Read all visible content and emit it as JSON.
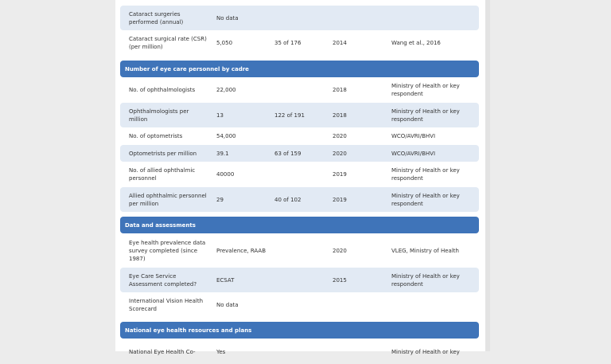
{
  "sections": [
    {
      "rows": [
        [
          "Cataract surgeries performed (annual)",
          "No data",
          "",
          "",
          ""
        ],
        [
          "Cataract surgical rate (CSR) (per million)",
          "5,050",
          "35 of 176",
          "2014",
          "Wang et al., 2016"
        ]
      ]
    },
    {
      "title": "Number of eye care personnel by cadre",
      "rows": [
        [
          "No. of ophthalmologists",
          "22,000",
          "",
          "2018",
          "Ministry of Health or key respondent"
        ],
        [
          "Ophthalmologists per million",
          "13",
          "122 of 191",
          "2018",
          "Ministry of Health or key respondent"
        ],
        [
          "No. of optometrists",
          "54,000",
          "",
          "2020",
          "WCO/AVRI/BHVI"
        ],
        [
          "Optometrists per million",
          "39.1",
          "63 of 159",
          "2020",
          "WCO/AVRI/BHVI"
        ],
        [
          "No. of allied ophthalmic personnel",
          "40000",
          "",
          "2019",
          "Ministry of Health or key respondent"
        ],
        [
          "Allied ophthalmic personnel per million",
          "29",
          "40 of 102",
          "2019",
          "Ministry of Health or key respondent"
        ]
      ]
    },
    {
      "title": "Data and assessments",
      "rows": [
        [
          "Eye health prevalence data survey completed (since 1987)",
          "Prevalence, RAAB",
          "",
          "2020",
          "VLEG, Ministry of Health"
        ],
        [
          "Eye Care Service Assessment completed?",
          "ECSAT",
          "",
          "2015",
          "Ministry of Health or key respondent"
        ],
        [
          "International Vision Health Scorecard",
          "No data",
          "",
          "",
          ""
        ]
      ]
    },
    {
      "title": "National eye health resources and plans",
      "rows": [
        [
          "National Eye Health Co-",
          "Yes",
          "",
          "",
          "Ministry of Health or key"
        ]
      ]
    }
  ],
  "colors": {
    "header": "#3f74b9",
    "alt_row": "#e2eaf4"
  }
}
